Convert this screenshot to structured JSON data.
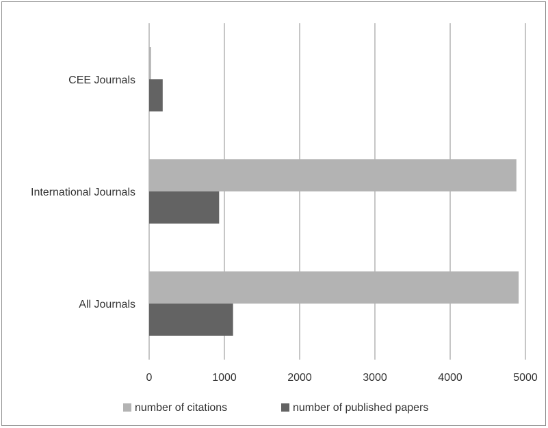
{
  "chart_data": {
    "type": "bar",
    "orientation": "horizontal",
    "title": "",
    "xlabel": "",
    "ylabel": "",
    "categories": [
      "CEE Journals",
      "International Journals",
      "All Journals"
    ],
    "series": [
      {
        "name": "number of citations",
        "values": [
          25,
          4880,
          4910
        ],
        "color": "#b3b3b3"
      },
      {
        "name": "number of published papers",
        "values": [
          180,
          930,
          1115
        ],
        "color": "#636363"
      }
    ],
    "xlim": [
      0,
      5000
    ],
    "xticks": [
      "0",
      "1000",
      "2000",
      "3000",
      "4000",
      "5000"
    ],
    "grid": "vertical",
    "legend": "bottom"
  }
}
